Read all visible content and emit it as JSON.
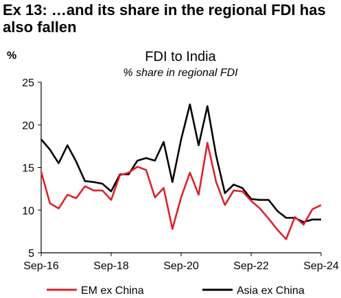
{
  "exhibit_title": "Ex 13: …and its share in the regional FDI has also fallen",
  "colors": {
    "em_ex_china": "#e0202a",
    "asia_ex_china": "#000000"
  },
  "chart_data": {
    "type": "line",
    "title": "FDI to India",
    "subtitle": "% share in regional FDI",
    "ylabel": "%",
    "xlabel": "",
    "ylim": [
      5,
      25
    ],
    "yticks": [
      5,
      10,
      15,
      20,
      25
    ],
    "x_ticks": [
      "Sep-16",
      "Sep-18",
      "Sep-20",
      "Sep-22",
      "Sep-24"
    ],
    "x_tick_index": [
      0,
      8,
      16,
      24,
      32
    ],
    "grid": false,
    "legend_position": "bottom",
    "x": [
      "Sep-16",
      "Dec-16",
      "Mar-17",
      "Jun-17",
      "Sep-17",
      "Dec-17",
      "Mar-18",
      "Jun-18",
      "Sep-18",
      "Dec-18",
      "Mar-19",
      "Jun-19",
      "Sep-19",
      "Dec-19",
      "Mar-20",
      "Jun-20",
      "Sep-20",
      "Dec-20",
      "Mar-21",
      "Jun-21",
      "Sep-21",
      "Dec-21",
      "Mar-22",
      "Jun-22",
      "Sep-22",
      "Dec-22",
      "Mar-23",
      "Jun-23",
      "Sep-23",
      "Dec-23",
      "Mar-24",
      "Jun-24",
      "Sep-24"
    ],
    "series": [
      {
        "name": "EM ex China",
        "values": [
          14.5,
          10.8,
          10.2,
          11.8,
          11.4,
          12.8,
          12.3,
          12.3,
          11.2,
          14.1,
          14.4,
          15.1,
          14.7,
          11.5,
          12.6,
          7.8,
          11.5,
          14.4,
          11.8,
          17.9,
          13.3,
          10.6,
          12.3,
          12.2,
          11.1,
          10.2,
          9.0,
          7.7,
          6.6,
          9.2,
          8.3,
          10.1,
          10.6
        ]
      },
      {
        "name": "Asia ex China",
        "values": [
          18.3,
          17.1,
          15.5,
          17.6,
          15.7,
          13.4,
          13.3,
          13.1,
          12.2,
          14.2,
          14.2,
          15.8,
          16.1,
          15.8,
          18.0,
          13.3,
          18.3,
          22.4,
          17.6,
          22.2,
          16.4,
          12.0,
          13.0,
          12.6,
          11.3,
          11.2,
          11.2,
          9.9,
          9.1,
          9.1,
          8.6,
          8.9,
          8.9
        ]
      }
    ]
  }
}
